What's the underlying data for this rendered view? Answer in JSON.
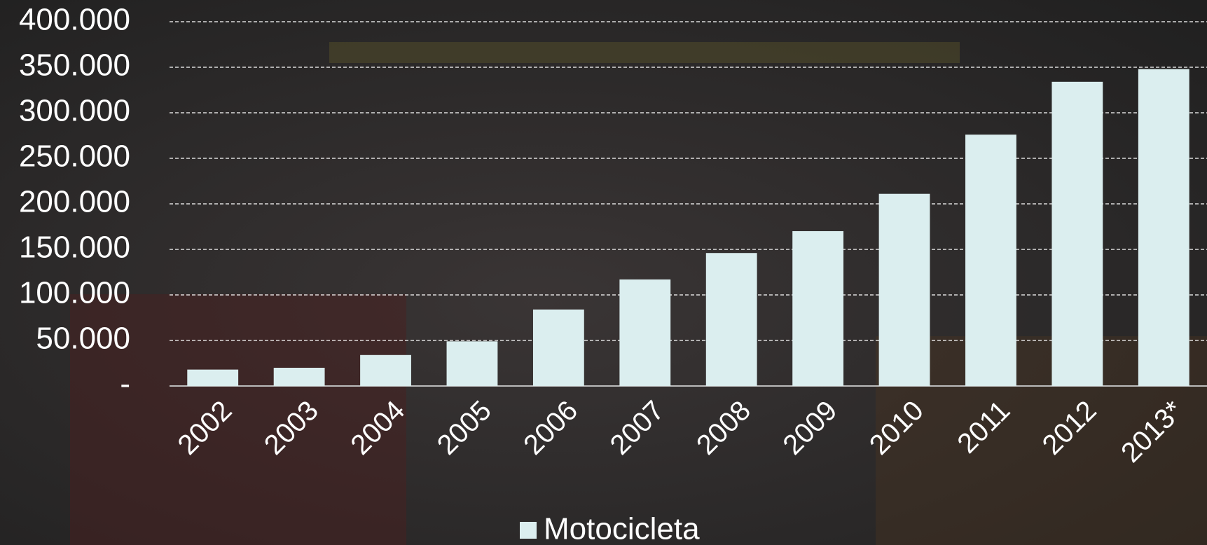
{
  "chart_data": {
    "type": "bar",
    "categories": [
      "2002",
      "2003",
      "2004",
      "2005",
      "2006",
      "2007",
      "2008",
      "2009",
      "2010",
      "2011",
      "2012",
      "2013*"
    ],
    "series": [
      {
        "name": "Motocicleta",
        "color": "#dbeeef",
        "values": [
          18000,
          20000,
          34000,
          49000,
          84000,
          117000,
          146000,
          170000,
          211000,
          276000,
          334000,
          348000
        ]
      }
    ],
    "ylim": [
      0,
      400000
    ],
    "yticks": [
      {
        "value": 0,
        "label": "-"
      },
      {
        "value": 50000,
        "label": "50.000"
      },
      {
        "value": 100000,
        "label": "100.000"
      },
      {
        "value": 150000,
        "label": "150.000"
      },
      {
        "value": 200000,
        "label": "200.000"
      },
      {
        "value": 250000,
        "label": "250.000"
      },
      {
        "value": 300000,
        "label": "300.000"
      },
      {
        "value": 350000,
        "label": "350.000"
      },
      {
        "value": 400000,
        "label": "400.000"
      }
    ],
    "grid": true
  }
}
